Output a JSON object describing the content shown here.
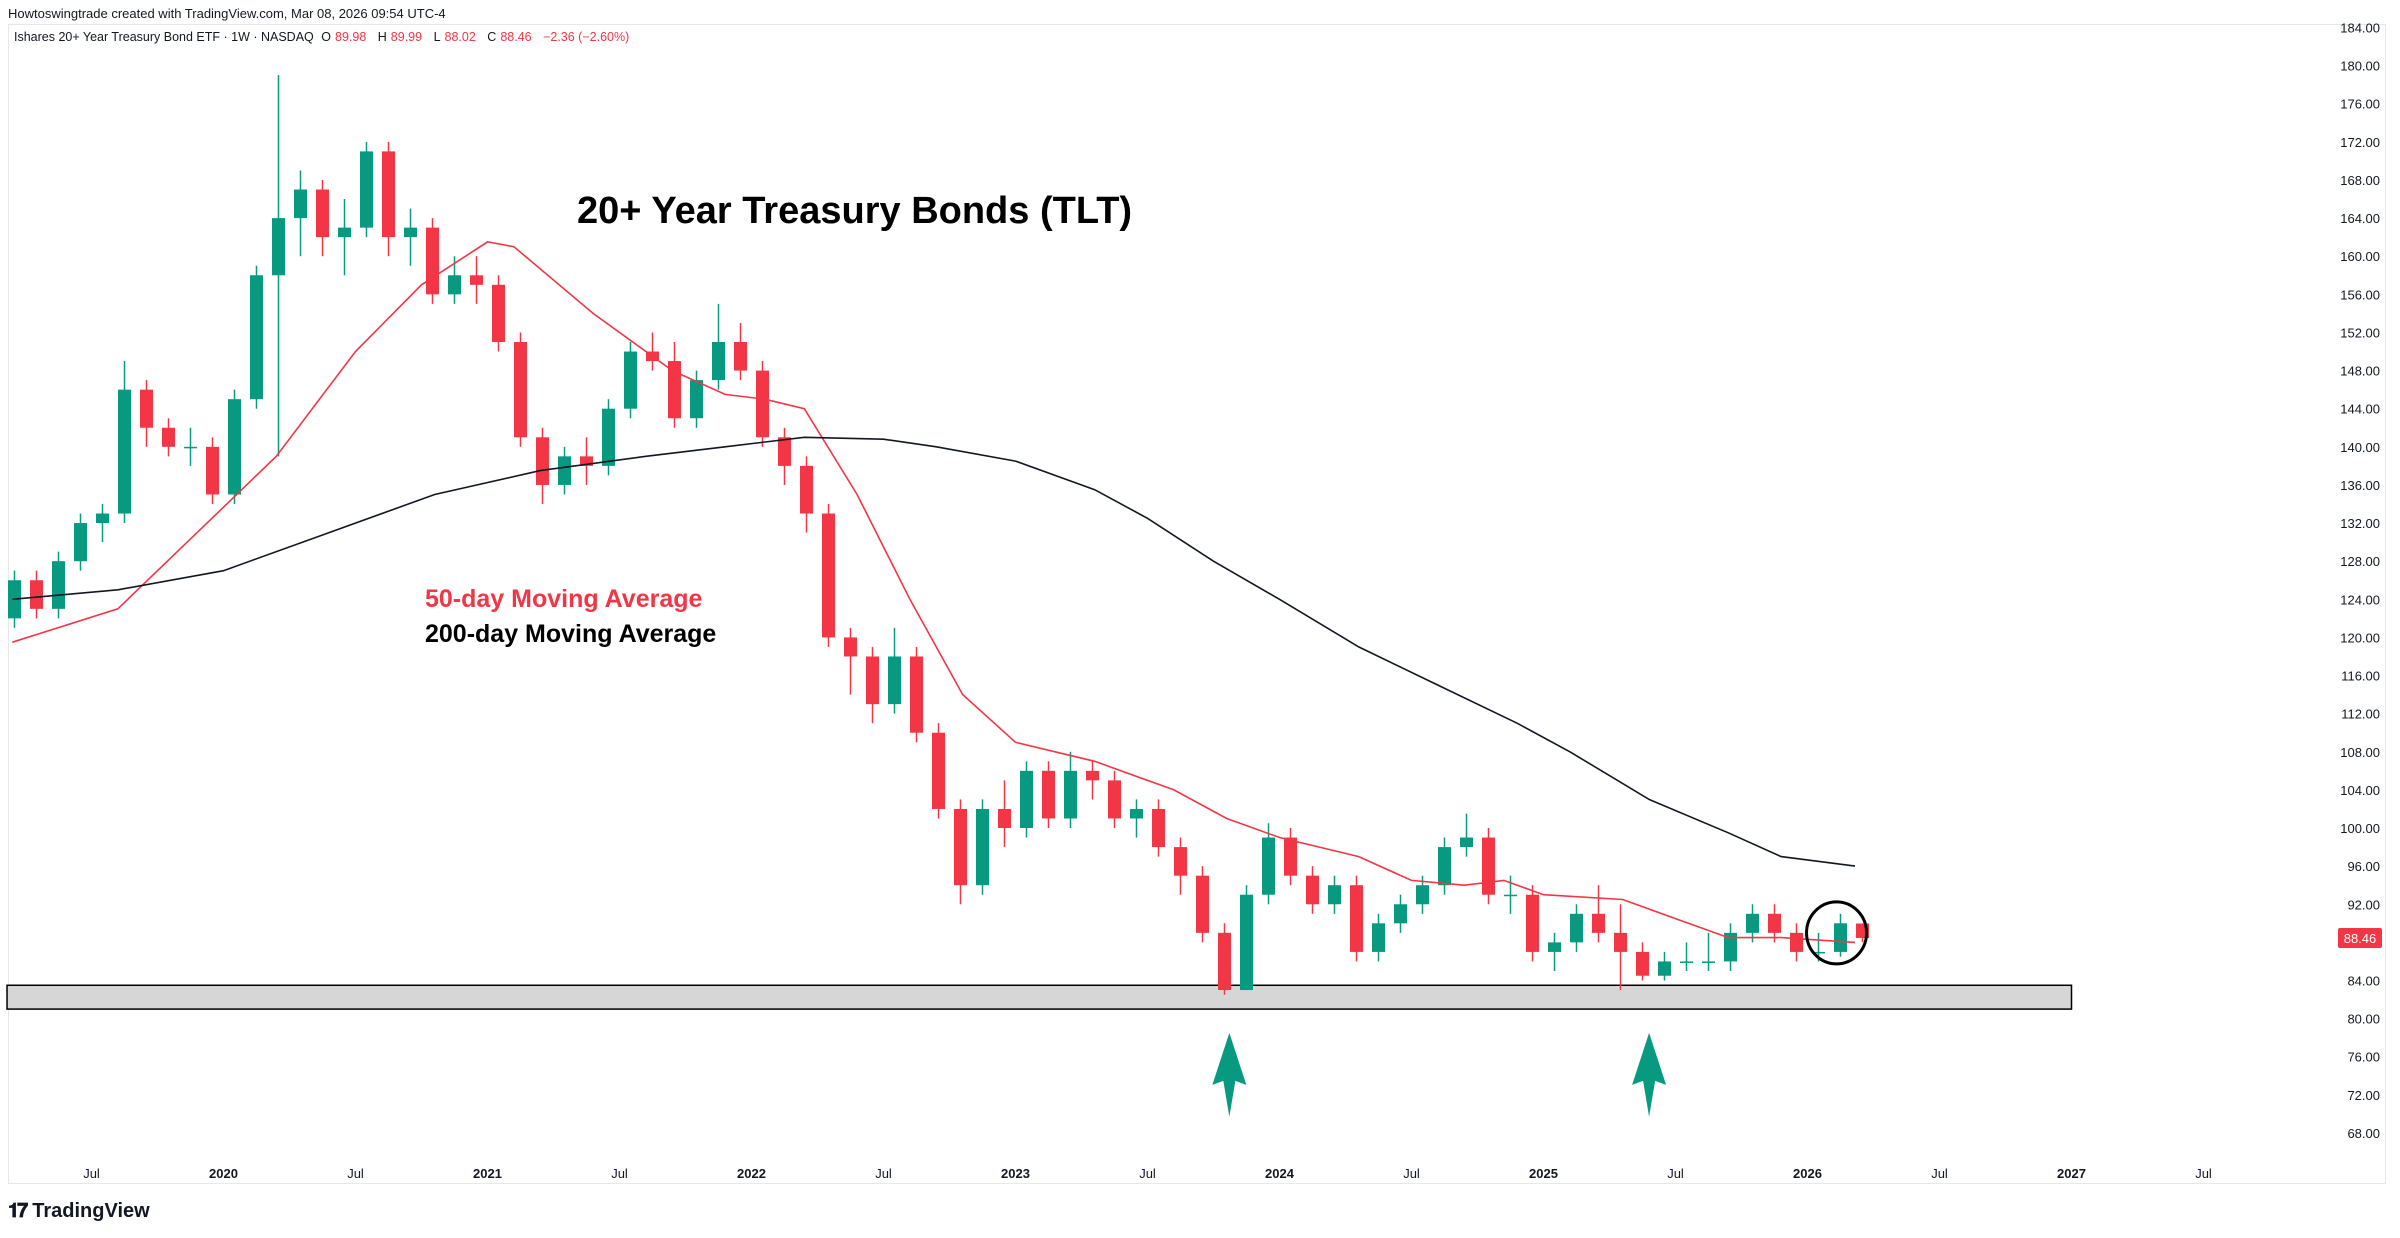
{
  "credit": "Howtoswingtrade created with TradingView.com, Mar 08, 2026 09:54 UTC-4",
  "legend": {
    "symbol": "Ishares 20+ Year Treasury Bond ETF · 1W · NASDAQ",
    "o_label": "O",
    "o": "89.98",
    "h_label": "H",
    "h": "89.99",
    "l_label": "L",
    "l": "88.02",
    "c_label": "C",
    "c": "88.46",
    "change": "−2.36 (−2.60%)"
  },
  "brand": "TradingView",
  "colors": {
    "up": "#089981",
    "down": "#f23645",
    "ma50": "#f23645",
    "ma200": "#131722",
    "support_zone": "#d6d6d6",
    "arrow": "#089981"
  },
  "chart_data": {
    "type": "candlestick",
    "title": "20+ Year Treasury Bonds (TLT)",
    "annotations": {
      "ma50_label": "50-day Moving Average",
      "ma200_label": "200-day Moving Average"
    },
    "last_price": "88.46",
    "ylim": [
      66,
      184
    ],
    "y_ticks": [
      "184.00",
      "180.00",
      "176.00",
      "172.00",
      "168.00",
      "164.00",
      "160.00",
      "156.00",
      "152.00",
      "148.00",
      "144.00",
      "140.00",
      "136.00",
      "132.00",
      "128.00",
      "124.00",
      "120.00",
      "116.00",
      "112.00",
      "108.00",
      "104.00",
      "100.00",
      "96.00",
      "92.00",
      "84.00",
      "80.00",
      "76.00",
      "72.00",
      "68.00"
    ],
    "y_tick_values": [
      184,
      180,
      176,
      172,
      168,
      164,
      160,
      156,
      152,
      148,
      144,
      140,
      136,
      132,
      128,
      124,
      120,
      116,
      112,
      108,
      104,
      100,
      96,
      92,
      84,
      80,
      76,
      72,
      68
    ],
    "x_ticks": [
      {
        "label": "Jul",
        "t": 2019.5
      },
      {
        "label": "2020",
        "t": 2020
      },
      {
        "label": "Jul",
        "t": 2020.5
      },
      {
        "label": "2021",
        "t": 2021
      },
      {
        "label": "Jul",
        "t": 2021.5
      },
      {
        "label": "2022",
        "t": 2022
      },
      {
        "label": "Jul",
        "t": 2022.5
      },
      {
        "label": "2023",
        "t": 2023
      },
      {
        "label": "Jul",
        "t": 2023.5
      },
      {
        "label": "2024",
        "t": 2024
      },
      {
        "label": "Jul",
        "t": 2024.5
      },
      {
        "label": "2025",
        "t": 2025
      },
      {
        "label": "Jul",
        "t": 2025.5
      },
      {
        "label": "2026",
        "t": 2026
      },
      {
        "label": "Jul",
        "t": 2026.5
      },
      {
        "label": "2027",
        "t": 2027
      },
      {
        "label": "Jul",
        "t": 2027.5
      }
    ],
    "candles_start": "2019-03",
    "candles_ohlc": [
      [
        122,
        127,
        121,
        126
      ],
      [
        126,
        127,
        122,
        123
      ],
      [
        123,
        129,
        122,
        128
      ],
      [
        128,
        133,
        127,
        132
      ],
      [
        132,
        134,
        130,
        133
      ],
      [
        133,
        149,
        132,
        146
      ],
      [
        146,
        147,
        140,
        142
      ],
      [
        142,
        143,
        139,
        140
      ],
      [
        140,
        142,
        138,
        140
      ],
      [
        140,
        141,
        134,
        135
      ],
      [
        135,
        146,
        134,
        145
      ],
      [
        145,
        159,
        144,
        158
      ],
      [
        158,
        179,
        139,
        164
      ],
      [
        164,
        169,
        160,
        167
      ],
      [
        167,
        168,
        160,
        162
      ],
      [
        162,
        166,
        158,
        163
      ],
      [
        163,
        172,
        162,
        171
      ],
      [
        171,
        172,
        160,
        162
      ],
      [
        162,
        165,
        159,
        163
      ],
      [
        163,
        164,
        155,
        156
      ],
      [
        156,
        160,
        155,
        158
      ],
      [
        158,
        160,
        155,
        157
      ],
      [
        157,
        158,
        150,
        151
      ],
      [
        151,
        152,
        140,
        141
      ],
      [
        141,
        142,
        134,
        136
      ],
      [
        136,
        140,
        135,
        139
      ],
      [
        139,
        141,
        136,
        138
      ],
      [
        138,
        145,
        137,
        144
      ],
      [
        144,
        151,
        143,
        150
      ],
      [
        150,
        152,
        148,
        149
      ],
      [
        149,
        151,
        142,
        143
      ],
      [
        143,
        148,
        142,
        147
      ],
      [
        147,
        155,
        146,
        151
      ],
      [
        151,
        153,
        147,
        148
      ],
      [
        148,
        149,
        140,
        141
      ],
      [
        141,
        142,
        136,
        138
      ],
      [
        138,
        139,
        131,
        133
      ],
      [
        133,
        134,
        119,
        120
      ],
      [
        120,
        121,
        114,
        118
      ],
      [
        118,
        119,
        111,
        113
      ],
      [
        113,
        121,
        112,
        118
      ],
      [
        118,
        119,
        109,
        110
      ],
      [
        110,
        111,
        101,
        102
      ],
      [
        102,
        103,
        92,
        94
      ],
      [
        94,
        103,
        93,
        102
      ],
      [
        102,
        105,
        98,
        100
      ],
      [
        100,
        107,
        99,
        106
      ],
      [
        106,
        107,
        100,
        101
      ],
      [
        101,
        108,
        100,
        106
      ],
      [
        106,
        107,
        103,
        105
      ],
      [
        105,
        106,
        100,
        101
      ],
      [
        101,
        103,
        99,
        102
      ],
      [
        102,
        103,
        97,
        98
      ],
      [
        98,
        99,
        93,
        95
      ],
      [
        95,
        96,
        88,
        89
      ],
      [
        89,
        90,
        82.5,
        83
      ],
      [
        83,
        94,
        83,
        93
      ],
      [
        93,
        100.5,
        92,
        99
      ],
      [
        99,
        100,
        94,
        95
      ],
      [
        95,
        96,
        91,
        92
      ],
      [
        92,
        95,
        91,
        94
      ],
      [
        94,
        95,
        86,
        87
      ],
      [
        87,
        91,
        86,
        90
      ],
      [
        90,
        93,
        89,
        92
      ],
      [
        92,
        95,
        91,
        94
      ],
      [
        94,
        99,
        93,
        98
      ],
      [
        98,
        101.5,
        97,
        99
      ],
      [
        99,
        100,
        92,
        93
      ],
      [
        93,
        95,
        91,
        93
      ],
      [
        93,
        94,
        86,
        87
      ],
      [
        87,
        89,
        85,
        88
      ],
      [
        88,
        92,
        87,
        91
      ],
      [
        91,
        94,
        88,
        89
      ],
      [
        89,
        92,
        83,
        87
      ],
      [
        87,
        88,
        84,
        84.5
      ],
      [
        84.5,
        87,
        84,
        86
      ],
      [
        86,
        88,
        85,
        86
      ],
      [
        86,
        89,
        85,
        86
      ],
      [
        86,
        90,
        85,
        89
      ],
      [
        89,
        92,
        88,
        91
      ],
      [
        91,
        92,
        88,
        89
      ],
      [
        89,
        90,
        86,
        87
      ],
      [
        87,
        89,
        86,
        87
      ],
      [
        87,
        91,
        86.5,
        90
      ],
      [
        89.98,
        89.99,
        88.02,
        88.46
      ]
    ],
    "ma50": [
      [
        2019.2,
        119.5
      ],
      [
        2019.6,
        123
      ],
      [
        2019.9,
        131
      ],
      [
        2020.2,
        139
      ],
      [
        2020.5,
        150
      ],
      [
        2020.75,
        157
      ],
      [
        2021.0,
        161.5
      ],
      [
        2021.1,
        161
      ],
      [
        2021.4,
        154
      ],
      [
        2021.7,
        148
      ],
      [
        2021.9,
        145.5
      ],
      [
        2022.05,
        145
      ],
      [
        2022.2,
        144
      ],
      [
        2022.4,
        135
      ],
      [
        2022.6,
        124
      ],
      [
        2022.8,
        114
      ],
      [
        2023.0,
        109
      ],
      [
        2023.3,
        107
      ],
      [
        2023.6,
        104
      ],
      [
        2023.8,
        101
      ],
      [
        2024.0,
        99
      ],
      [
        2024.3,
        97
      ],
      [
        2024.5,
        94.5
      ],
      [
        2024.7,
        94
      ],
      [
        2024.85,
        94.5
      ],
      [
        2025.0,
        93
      ],
      [
        2025.3,
        92.5
      ],
      [
        2025.5,
        90.5
      ],
      [
        2025.7,
        88.5
      ],
      [
        2025.9,
        88.5
      ],
      [
        2026.18,
        88
      ]
    ],
    "ma200": [
      [
        2019.2,
        124
      ],
      [
        2019.6,
        125
      ],
      [
        2020.0,
        127
      ],
      [
        2020.4,
        131
      ],
      [
        2020.8,
        135
      ],
      [
        2021.2,
        137.5
      ],
      [
        2021.6,
        139
      ],
      [
        2021.9,
        140
      ],
      [
        2022.2,
        141
      ],
      [
        2022.5,
        140.8
      ],
      [
        2022.7,
        140
      ],
      [
        2023.0,
        138.5
      ],
      [
        2023.3,
        135.5
      ],
      [
        2023.5,
        132.5
      ],
      [
        2023.75,
        128
      ],
      [
        2024.0,
        124
      ],
      [
        2024.3,
        119
      ],
      [
        2024.6,
        115
      ],
      [
        2024.9,
        111
      ],
      [
        2025.1,
        108
      ],
      [
        2025.4,
        103
      ],
      [
        2025.7,
        99.5
      ],
      [
        2025.9,
        97
      ],
      [
        2026.18,
        96
      ]
    ],
    "support_zone": {
      "from": 81,
      "to": 83.5,
      "t_start": 2019.18,
      "t_end": 2027.0
    },
    "arrows": [
      {
        "t": 2023.81,
        "tip": 78.5,
        "tail": 69.7
      },
      {
        "t": 2025.4,
        "tip": 78.5,
        "tail": 69.7
      }
    ],
    "highlight_circle": {
      "t": 2026.11,
      "price": 89
    }
  }
}
